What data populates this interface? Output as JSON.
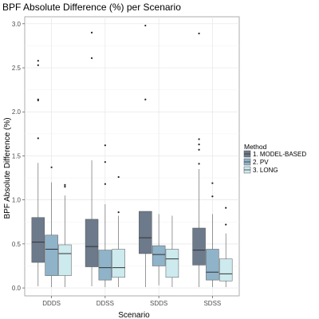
{
  "chart_data": {
    "type": "boxplot",
    "title": "BPF Absolute Difference (%) per Scenario",
    "xlabel": "Scenario",
    "ylabel": "BPF Absolute Difference (%)",
    "categories": [
      "DDDS",
      "DDSS",
      "SDDS",
      "SDSS"
    ],
    "yticks": [
      "0.0",
      "0.5",
      "1.0",
      "1.5",
      "2.0",
      "2.5",
      "3.0"
    ],
    "ylim": [
      -0.09,
      3.08
    ],
    "grid": true,
    "legend": {
      "title": "Method",
      "position": "right"
    },
    "series": [
      {
        "name": "1. MODEL-BASED",
        "color": "#6c7a8b",
        "boxes": [
          {
            "min": 0.02,
            "q1": 0.29,
            "median": 0.52,
            "q3": 0.8,
            "max": 1.42,
            "outliers": [
              1.7,
              2.13,
              2.14,
              2.53,
              2.58
            ]
          },
          {
            "min": 0.02,
            "q1": 0.24,
            "median": 0.47,
            "q3": 0.78,
            "max": 1.45,
            "outliers": [
              2.61,
              2.9
            ]
          },
          {
            "min": 0.01,
            "q1": 0.39,
            "median": 0.57,
            "q3": 0.87,
            "max": 0.87,
            "outliers": [
              2.14,
              2.98
            ]
          },
          {
            "min": 0.01,
            "q1": 0.26,
            "median": 0.43,
            "q3": 0.68,
            "max": 1.35,
            "outliers": [
              1.41,
              1.57,
              1.63,
              1.69,
              2.89
            ]
          }
        ]
      },
      {
        "name": "2. PV",
        "color": "#8fb3c9",
        "boxes": [
          {
            "min": 0.01,
            "q1": 0.14,
            "median": 0.44,
            "q3": 0.6,
            "max": 1.2,
            "outliers": [
              1.37
            ]
          },
          {
            "min": 0.01,
            "q1": 0.09,
            "median": 0.23,
            "q3": 0.43,
            "max": 0.95,
            "outliers": [
              1.18,
              1.43,
              1.62
            ]
          },
          {
            "min": 0.03,
            "q1": 0.25,
            "median": 0.38,
            "q3": 0.48,
            "max": 0.84,
            "outliers": []
          },
          {
            "min": 0.01,
            "q1": 0.09,
            "median": 0.18,
            "q3": 0.44,
            "max": 0.84,
            "outliers": [
              1.04,
              1.19
            ]
          }
        ]
      },
      {
        "name": "3. LONG",
        "color": "#cdeaee",
        "boxes": [
          {
            "min": 0.01,
            "q1": 0.14,
            "median": 0.39,
            "q3": 0.49,
            "max": 1.05,
            "outliers": [
              1.15,
              1.17
            ]
          },
          {
            "min": 0.01,
            "q1": 0.12,
            "median": 0.23,
            "q3": 0.44,
            "max": 0.82,
            "outliers": [
              0.86,
              1.26
            ]
          },
          {
            "min": 0.01,
            "q1": 0.12,
            "median": 0.33,
            "q3": 0.44,
            "max": 0.82,
            "outliers": []
          },
          {
            "min": 0.01,
            "q1": 0.08,
            "median": 0.16,
            "q3": 0.33,
            "max": 0.62,
            "outliers": [
              0.72,
              0.91
            ]
          }
        ]
      }
    ]
  }
}
